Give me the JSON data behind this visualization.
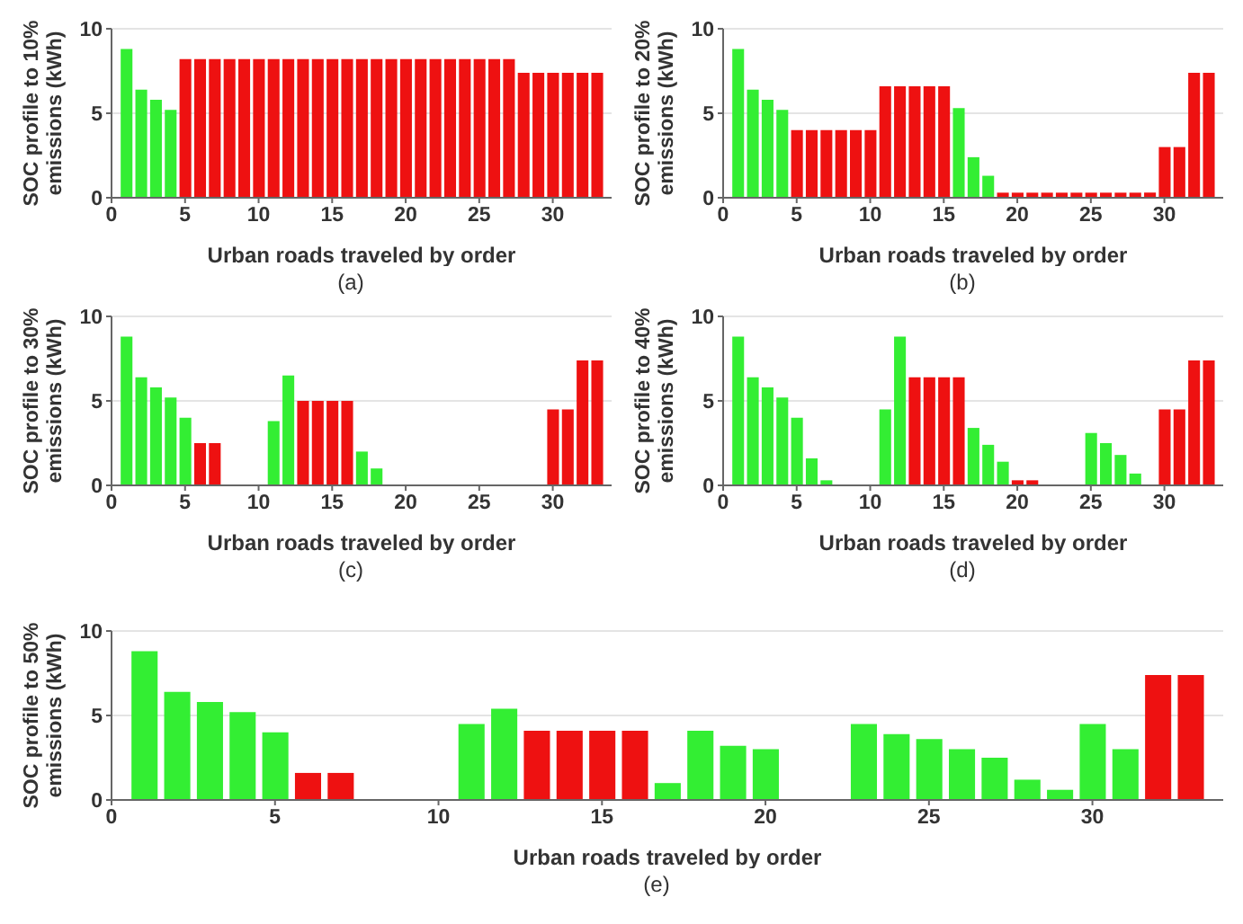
{
  "chart_data": [
    {
      "type": "bar",
      "xlabel": "Urban roads traveled by order",
      "ylabel": "SOC profile to 10% emissions (kWh)",
      "annotations": [
        "(a)"
      ],
      "x": [
        1,
        2,
        3,
        4,
        5,
        6,
        7,
        8,
        9,
        10,
        11,
        12,
        13,
        14,
        15,
        16,
        17,
        18,
        19,
        20,
        21,
        22,
        23,
        24,
        25,
        26,
        27,
        28,
        29,
        30,
        31,
        32,
        33
      ],
      "values": [
        8.8,
        6.4,
        5.8,
        5.2,
        8.2,
        8.2,
        8.2,
        8.2,
        8.2,
        8.2,
        8.2,
        8.2,
        8.2,
        8.2,
        8.2,
        8.2,
        8.2,
        8.2,
        8.2,
        8.2,
        8.2,
        8.2,
        8.2,
        8.2,
        8.2,
        8.2,
        8.2,
        7.4,
        7.4,
        7.4,
        7.4,
        7.4,
        7.4
      ],
      "colors": [
        "#33ee33",
        "#33ee33",
        "#33ee33",
        "#33ee33",
        "#ee1111",
        "#ee1111",
        "#ee1111",
        "#ee1111",
        "#ee1111",
        "#ee1111",
        "#ee1111",
        "#ee1111",
        "#ee1111",
        "#ee1111",
        "#ee1111",
        "#ee1111",
        "#ee1111",
        "#ee1111",
        "#ee1111",
        "#ee1111",
        "#ee1111",
        "#ee1111",
        "#ee1111",
        "#ee1111",
        "#ee1111",
        "#ee1111",
        "#ee1111",
        "#ee1111",
        "#ee1111",
        "#ee1111",
        "#ee1111",
        "#ee1111",
        "#ee1111"
      ],
      "xlim": [
        0,
        34
      ],
      "xticks": [
        0,
        5,
        10,
        15,
        20,
        25,
        30
      ],
      "ylim": [
        0,
        10
      ],
      "yticks": [
        0,
        5,
        10
      ],
      "grid": "y",
      "legend": false
    },
    {
      "type": "bar",
      "xlabel": "Urban roads traveled by order",
      "ylabel": "SOC profile to 20% emissions (kWh)",
      "annotations": [
        "(b)"
      ],
      "x": [
        1,
        2,
        3,
        4,
        5,
        6,
        7,
        8,
        9,
        10,
        11,
        12,
        13,
        14,
        15,
        16,
        17,
        18,
        19,
        20,
        21,
        22,
        23,
        24,
        25,
        26,
        27,
        28,
        29,
        30,
        31,
        32,
        33
      ],
      "values": [
        8.8,
        6.4,
        5.8,
        5.2,
        4.0,
        4.0,
        4.0,
        4.0,
        4.0,
        4.0,
        6.6,
        6.6,
        6.6,
        6.6,
        6.6,
        5.3,
        2.4,
        1.3,
        0.3,
        0.3,
        0.3,
        0.3,
        0.3,
        0.3,
        0.3,
        0.3,
        0.3,
        0.3,
        0.3,
        3.0,
        3.0,
        7.4,
        7.4
      ],
      "colors": [
        "#33ee33",
        "#33ee33",
        "#33ee33",
        "#33ee33",
        "#ee1111",
        "#ee1111",
        "#ee1111",
        "#ee1111",
        "#ee1111",
        "#ee1111",
        "#ee1111",
        "#ee1111",
        "#ee1111",
        "#ee1111",
        "#ee1111",
        "#33ee33",
        "#33ee33",
        "#33ee33",
        "#ee1111",
        "#ee1111",
        "#ee1111",
        "#ee1111",
        "#ee1111",
        "#ee1111",
        "#ee1111",
        "#ee1111",
        "#ee1111",
        "#ee1111",
        "#ee1111",
        "#ee1111",
        "#ee1111",
        "#ee1111",
        "#ee1111"
      ],
      "xlim": [
        0,
        34
      ],
      "xticks": [
        0,
        5,
        10,
        15,
        20,
        25,
        30
      ],
      "ylim": [
        0,
        10
      ],
      "yticks": [
        0,
        5,
        10
      ],
      "grid": "y",
      "legend": false
    },
    {
      "type": "bar",
      "xlabel": "Urban roads traveled by order",
      "ylabel": "SOC profile to 30% emissions (kWh)",
      "annotations": [
        "(c)"
      ],
      "x": [
        1,
        2,
        3,
        4,
        5,
        6,
        7,
        8,
        9,
        10,
        11,
        12,
        13,
        14,
        15,
        16,
        17,
        18,
        19,
        20,
        21,
        22,
        23,
        24,
        25,
        26,
        27,
        28,
        29,
        30,
        31,
        32,
        33
      ],
      "values": [
        8.8,
        6.4,
        5.8,
        5.2,
        4.0,
        2.5,
        2.5,
        null,
        null,
        null,
        3.8,
        6.5,
        5.0,
        5.0,
        5.0,
        5.0,
        2.0,
        1.0,
        null,
        null,
        null,
        null,
        null,
        null,
        null,
        null,
        null,
        null,
        null,
        4.5,
        4.5,
        7.4,
        7.4
      ],
      "colors": [
        "#33ee33",
        "#33ee33",
        "#33ee33",
        "#33ee33",
        "#33ee33",
        "#ee1111",
        "#ee1111",
        "#33ee33",
        "#33ee33",
        "#33ee33",
        "#33ee33",
        "#33ee33",
        "#ee1111",
        "#ee1111",
        "#ee1111",
        "#ee1111",
        "#33ee33",
        "#33ee33",
        "#33ee33",
        "#33ee33",
        "#33ee33",
        "#33ee33",
        "#33ee33",
        "#33ee33",
        "#33ee33",
        "#33ee33",
        "#33ee33",
        "#33ee33",
        "#33ee33",
        "#ee1111",
        "#ee1111",
        "#ee1111",
        "#ee1111"
      ],
      "xlim": [
        0,
        34
      ],
      "xticks": [
        0,
        5,
        10,
        15,
        20,
        25,
        30
      ],
      "ylim": [
        0,
        10
      ],
      "yticks": [
        0,
        5,
        10
      ],
      "grid": "y",
      "legend": false
    },
    {
      "type": "bar",
      "xlabel": "Urban roads traveled by order",
      "ylabel": "SOC profile to 40% emissions (kWh)",
      "annotations": [
        "(d)"
      ],
      "x": [
        1,
        2,
        3,
        4,
        5,
        6,
        7,
        8,
        9,
        10,
        11,
        12,
        13,
        14,
        15,
        16,
        17,
        18,
        19,
        20,
        21,
        22,
        23,
        24,
        25,
        26,
        27,
        28,
        29,
        30,
        31,
        32,
        33
      ],
      "values": [
        8.8,
        6.4,
        5.8,
        5.2,
        4.0,
        1.6,
        0.3,
        null,
        null,
        null,
        4.5,
        8.8,
        6.4,
        6.4,
        6.4,
        6.4,
        3.4,
        2.4,
        1.4,
        0.3,
        0.3,
        null,
        null,
        null,
        3.1,
        2.5,
        1.8,
        0.7,
        null,
        4.5,
        4.5,
        7.4,
        7.4
      ],
      "colors": [
        "#33ee33",
        "#33ee33",
        "#33ee33",
        "#33ee33",
        "#33ee33",
        "#33ee33",
        "#33ee33",
        "#33ee33",
        "#33ee33",
        "#33ee33",
        "#33ee33",
        "#33ee33",
        "#ee1111",
        "#ee1111",
        "#ee1111",
        "#ee1111",
        "#33ee33",
        "#33ee33",
        "#33ee33",
        "#ee1111",
        "#ee1111",
        "#33ee33",
        "#33ee33",
        "#33ee33",
        "#33ee33",
        "#33ee33",
        "#33ee33",
        "#33ee33",
        "#33ee33",
        "#ee1111",
        "#ee1111",
        "#ee1111",
        "#ee1111"
      ],
      "xlim": [
        0,
        34
      ],
      "xticks": [
        0,
        5,
        10,
        15,
        20,
        25,
        30
      ],
      "ylim": [
        0,
        10
      ],
      "yticks": [
        0,
        5,
        10
      ],
      "grid": "y",
      "legend": false
    },
    {
      "type": "bar",
      "xlabel": "Urban roads traveled by order",
      "ylabel": "SOC profile to 50% emissions (kWh)",
      "annotations": [
        "(e)"
      ],
      "x": [
        1,
        2,
        3,
        4,
        5,
        6,
        7,
        8,
        9,
        10,
        11,
        12,
        13,
        14,
        15,
        16,
        17,
        18,
        19,
        20,
        21,
        22,
        23,
        24,
        25,
        26,
        27,
        28,
        29,
        30,
        31,
        32,
        33
      ],
      "values": [
        8.8,
        6.4,
        5.8,
        5.2,
        4.0,
        1.6,
        1.6,
        null,
        null,
        null,
        4.5,
        5.4,
        4.1,
        4.1,
        4.1,
        4.1,
        1.0,
        4.1,
        3.2,
        3.0,
        null,
        null,
        4.5,
        3.9,
        3.6,
        3.0,
        2.5,
        1.2,
        0.6,
        4.5,
        3.0,
        7.4,
        7.4
      ],
      "colors": [
        "#33ee33",
        "#33ee33",
        "#33ee33",
        "#33ee33",
        "#33ee33",
        "#ee1111",
        "#ee1111",
        "#33ee33",
        "#33ee33",
        "#33ee33",
        "#33ee33",
        "#33ee33",
        "#ee1111",
        "#ee1111",
        "#ee1111",
        "#ee1111",
        "#33ee33",
        "#33ee33",
        "#33ee33",
        "#33ee33",
        "#33ee33",
        "#33ee33",
        "#33ee33",
        "#33ee33",
        "#33ee33",
        "#33ee33",
        "#33ee33",
        "#33ee33",
        "#33ee33",
        "#33ee33",
        "#33ee33",
        "#ee1111",
        "#ee1111"
      ],
      "xlim": [
        0,
        34
      ],
      "xticks": [
        0,
        5,
        10,
        15,
        20,
        25,
        30
      ],
      "ylim": [
        0,
        10
      ],
      "yticks": [
        0,
        5,
        10
      ],
      "grid": "y",
      "legend": false
    }
  ]
}
